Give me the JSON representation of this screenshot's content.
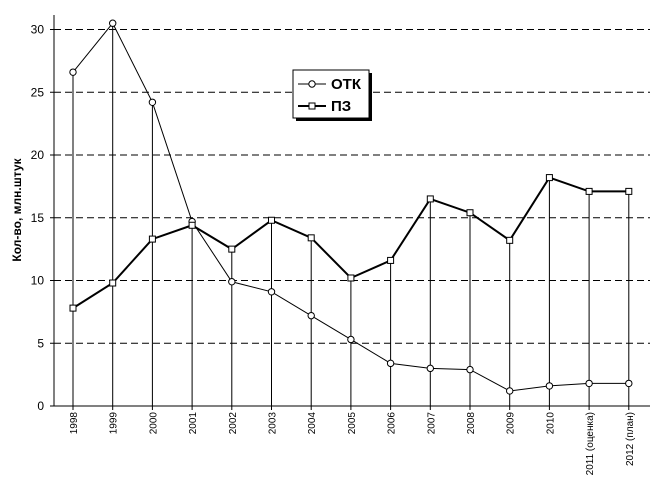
{
  "chart_data": {
    "type": "line",
    "ylabel": "Кол-во, млн.штук",
    "categories": [
      "1998",
      "1999",
      "2000",
      "2001",
      "2002",
      "2003",
      "2004",
      "2005",
      "2006",
      "2007",
      "2008",
      "2009",
      "2010",
      "2011 (оценка)",
      "2012 (план)"
    ],
    "ylim": [
      0,
      31
    ],
    "yticks": [
      0,
      5,
      10,
      15,
      20,
      25,
      30
    ],
    "grid": "horizontal-dashed",
    "legend_placement": "top-center",
    "series": [
      {
        "name": "ОТК",
        "marker": "circle",
        "line": "thin",
        "values": [
          26.6,
          30.5,
          24.2,
          14.7,
          9.9,
          9.1,
          7.2,
          5.3,
          3.4,
          3.0,
          2.9,
          1.2,
          1.6,
          1.8,
          1.8
        ]
      },
      {
        "name": "ПЗ",
        "marker": "square",
        "line": "bold",
        "values": [
          7.8,
          9.8,
          13.3,
          14.4,
          12.5,
          14.8,
          13.4,
          10.2,
          11.6,
          16.5,
          15.4,
          13.2,
          18.2,
          17.1,
          17.1
        ]
      }
    ]
  }
}
